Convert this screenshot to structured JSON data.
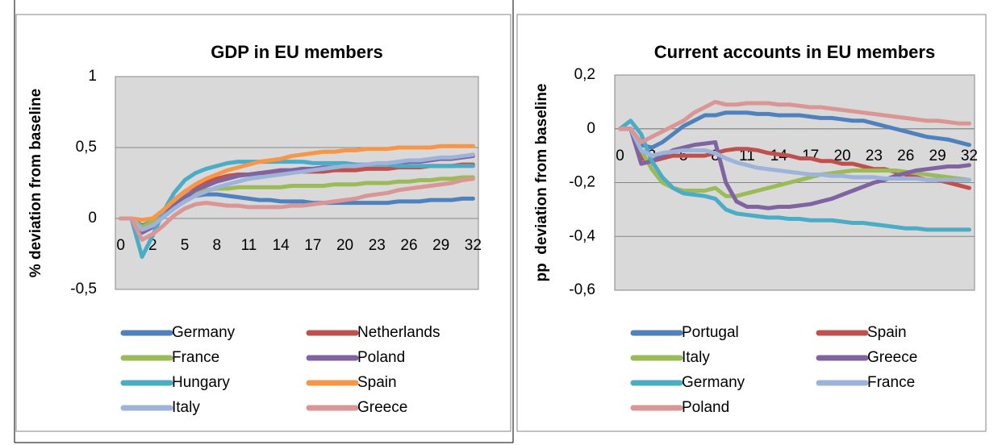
{
  "chart_data": [
    {
      "type": "line",
      "title": "GDP in EU members",
      "y_label": "% deviation from baseline",
      "categories": [
        "0",
        null,
        null,
        "2",
        null,
        null,
        "5",
        null,
        null,
        "8",
        null,
        null,
        "11",
        null,
        null,
        "14",
        null,
        null,
        "17",
        null,
        null,
        "20",
        null,
        null,
        "23",
        null,
        null,
        "26",
        null,
        null,
        "29",
        null,
        null,
        "32"
      ],
      "ylim": [
        -0.5,
        1
      ],
      "yticks": [
        {
          "value": -0.5,
          "label": "-0,5"
        },
        0,
        {
          "value": 0.5,
          "label": "0,5"
        },
        1
      ],
      "grid": true,
      "legend": "bottom",
      "series": [
        {
          "name": "Germany",
          "color": "#4F81BD",
          "values": [
            0,
            0,
            -0.05,
            -0.02,
            0.05,
            0.1,
            0.14,
            0.16,
            0.17,
            0.17,
            0.16,
            0.15,
            0.14,
            0.13,
            0.13,
            0.12,
            0.12,
            0.12,
            0.11,
            0.11,
            0.11,
            0.11,
            0.11,
            0.11,
            0.11,
            0.11,
            0.12,
            0.12,
            0.12,
            0.13,
            0.13,
            0.13,
            0.14,
            0.14
          ]
        },
        {
          "name": "Netherlands",
          "color": "#C0504D",
          "values": [
            0,
            0,
            -0.06,
            -0.02,
            0.06,
            0.13,
            0.19,
            0.23,
            0.26,
            0.28,
            0.3,
            0.31,
            0.31,
            0.32,
            0.32,
            0.32,
            0.33,
            0.33,
            0.33,
            0.33,
            0.34,
            0.34,
            0.34,
            0.35,
            0.35,
            0.35,
            0.36,
            0.36,
            0.36,
            0.37,
            0.37,
            0.37,
            0.38,
            0.38
          ]
        },
        {
          "name": "France",
          "color": "#9BBB59",
          "values": [
            0,
            0,
            -0.06,
            -0.02,
            0.05,
            0.11,
            0.16,
            0.19,
            0.2,
            0.21,
            0.21,
            0.22,
            0.22,
            0.22,
            0.22,
            0.22,
            0.23,
            0.23,
            0.23,
            0.23,
            0.24,
            0.24,
            0.24,
            0.25,
            0.25,
            0.25,
            0.26,
            0.26,
            0.27,
            0.27,
            0.28,
            0.28,
            0.29,
            0.29
          ]
        },
        {
          "name": "Poland",
          "color": "#8064A2",
          "values": [
            0,
            0,
            -0.1,
            -0.06,
            0.02,
            0.09,
            0.15,
            0.2,
            0.23,
            0.26,
            0.28,
            0.3,
            0.31,
            0.32,
            0.33,
            0.34,
            0.34,
            0.35,
            0.35,
            0.36,
            0.36,
            0.37,
            0.37,
            0.38,
            0.38,
            0.39,
            0.39,
            0.4,
            0.4,
            0.41,
            0.42,
            0.42,
            0.43,
            0.44
          ]
        },
        {
          "name": "Hungary",
          "color": "#4BACC6",
          "values": [
            0,
            0,
            -0.27,
            -0.12,
            0.05,
            0.18,
            0.27,
            0.32,
            0.35,
            0.37,
            0.39,
            0.4,
            0.4,
            0.4,
            0.4,
            0.4,
            0.4,
            0.4,
            0.39,
            0.39,
            0.39,
            0.39,
            0.38,
            0.38,
            0.38,
            0.38,
            0.37,
            0.37,
            0.37,
            0.37,
            0.37,
            0.37,
            0.37,
            0.37
          ]
        },
        {
          "name": "Spain",
          "color": "#F79646",
          "values": [
            0,
            0,
            -0.01,
            0,
            0.06,
            0.13,
            0.19,
            0.24,
            0.28,
            0.31,
            0.34,
            0.36,
            0.38,
            0.4,
            0.41,
            0.42,
            0.44,
            0.45,
            0.46,
            0.47,
            0.47,
            0.48,
            0.48,
            0.49,
            0.49,
            0.49,
            0.5,
            0.5,
            0.5,
            0.5,
            0.51,
            0.51,
            0.51,
            0.51
          ]
        },
        {
          "name": "Italy",
          "color": "#9DB3D9",
          "values": [
            0,
            0,
            -0.08,
            -0.05,
            0.01,
            0.07,
            0.12,
            0.16,
            0.19,
            0.22,
            0.24,
            0.26,
            0.28,
            0.29,
            0.3,
            0.31,
            0.32,
            0.33,
            0.34,
            0.35,
            0.36,
            0.37,
            0.37,
            0.38,
            0.39,
            0.39,
            0.4,
            0.41,
            0.41,
            0.42,
            0.43,
            0.43,
            0.44,
            0.45
          ]
        },
        {
          "name": "Greece",
          "color": "#D99694",
          "values": [
            0,
            0,
            -0.15,
            -0.11,
            -0.05,
            0.02,
            0.07,
            0.1,
            0.11,
            0.1,
            0.09,
            0.09,
            0.08,
            0.08,
            0.08,
            0.08,
            0.09,
            0.09,
            0.1,
            0.11,
            0.12,
            0.13,
            0.14,
            0.16,
            0.17,
            0.18,
            0.2,
            0.21,
            0.22,
            0.23,
            0.24,
            0.25,
            0.27,
            0.28
          ]
        }
      ]
    },
    {
      "type": "line",
      "title": "Current accounts in EU members",
      "y_label": "pp  deviation from baseline",
      "categories": [
        "0",
        null,
        null,
        "2",
        null,
        null,
        "5",
        null,
        null,
        "8",
        null,
        null,
        "11",
        null,
        null,
        "14",
        null,
        null,
        "17",
        null,
        null,
        "20",
        null,
        null,
        "23",
        null,
        null,
        "26",
        null,
        null,
        "29",
        null,
        null,
        "32"
      ],
      "ylim": [
        -0.6,
        0.2
      ],
      "yticks": [
        {
          "value": -0.6,
          "label": "-0,6"
        },
        {
          "value": -0.4,
          "label": "-0,4"
        },
        {
          "value": -0.2,
          "label": "-0,2"
        },
        0,
        {
          "value": 0.2,
          "label": "0,2"
        }
      ],
      "grid": true,
      "legend": "bottom",
      "series": [
        {
          "name": "Portugal",
          "color": "#4F81BD",
          "values": [
            0,
            0,
            -0.06,
            -0.07,
            -0.05,
            -0.02,
            0.01,
            0.03,
            0.05,
            0.05,
            0.06,
            0.06,
            0.06,
            0.055,
            0.055,
            0.05,
            0.05,
            0.05,
            0.045,
            0.04,
            0.04,
            0.035,
            0.03,
            0.03,
            0.02,
            0.01,
            0,
            -0.01,
            -0.02,
            -0.03,
            -0.035,
            -0.04,
            -0.05,
            -0.06
          ]
        },
        {
          "name": "Spain",
          "color": "#C0504D",
          "values": [
            0,
            0,
            -0.11,
            -0.12,
            -0.11,
            -0.1,
            -0.1,
            -0.1,
            -0.1,
            -0.09,
            -0.08,
            -0.075,
            -0.075,
            -0.08,
            -0.09,
            -0.095,
            -0.1,
            -0.11,
            -0.11,
            -0.12,
            -0.12,
            -0.13,
            -0.13,
            -0.14,
            -0.15,
            -0.15,
            -0.16,
            -0.17,
            -0.18,
            -0.19,
            -0.19,
            -0.2,
            -0.21,
            -0.22
          ]
        },
        {
          "name": "Italy",
          "color": "#9BBB59",
          "values": [
            0,
            0,
            -0.08,
            -0.15,
            -0.2,
            -0.22,
            -0.23,
            -0.23,
            -0.23,
            -0.22,
            -0.25,
            -0.25,
            -0.24,
            -0.23,
            -0.22,
            -0.21,
            -0.2,
            -0.19,
            -0.18,
            -0.17,
            -0.165,
            -0.16,
            -0.155,
            -0.155,
            -0.155,
            -0.155,
            -0.155,
            -0.16,
            -0.165,
            -0.17,
            -0.175,
            -0.18,
            -0.185,
            -0.19
          ]
        },
        {
          "name": "Greece",
          "color": "#8064A2",
          "values": [
            0,
            0,
            -0.13,
            -0.12,
            -0.1,
            -0.08,
            -0.07,
            -0.06,
            -0.055,
            -0.05,
            -0.2,
            -0.27,
            -0.29,
            -0.29,
            -0.295,
            -0.29,
            -0.29,
            -0.285,
            -0.28,
            -0.27,
            -0.26,
            -0.245,
            -0.23,
            -0.215,
            -0.2,
            -0.19,
            -0.175,
            -0.165,
            -0.155,
            -0.15,
            -0.145,
            -0.14,
            -0.14,
            -0.135
          ]
        },
        {
          "name": "Germany",
          "color": "#4BACC6",
          "values": [
            0,
            0.03,
            -0.02,
            -0.12,
            -0.18,
            -0.22,
            -0.24,
            -0.245,
            -0.25,
            -0.26,
            -0.3,
            -0.315,
            -0.32,
            -0.325,
            -0.33,
            -0.33,
            -0.335,
            -0.335,
            -0.34,
            -0.34,
            -0.34,
            -0.345,
            -0.35,
            -0.35,
            -0.355,
            -0.36,
            -0.365,
            -0.37,
            -0.37,
            -0.375,
            -0.375,
            -0.375,
            -0.375,
            -0.375
          ]
        },
        {
          "name": "France",
          "color": "#9DB3D9",
          "values": [
            0,
            0,
            -0.08,
            -0.1,
            -0.09,
            -0.085,
            -0.08,
            -0.08,
            -0.08,
            -0.09,
            -0.11,
            -0.125,
            -0.135,
            -0.145,
            -0.15,
            -0.155,
            -0.16,
            -0.165,
            -0.17,
            -0.17,
            -0.175,
            -0.175,
            -0.18,
            -0.18,
            -0.18,
            -0.185,
            -0.185,
            -0.185,
            -0.185,
            -0.19,
            -0.19,
            -0.19,
            -0.19,
            -0.19
          ]
        },
        {
          "name": "Poland",
          "color": "#D99694",
          "values": [
            0,
            0,
            -0.05,
            -0.03,
            -0.01,
            0.01,
            0.03,
            0.06,
            0.08,
            0.1,
            0.09,
            0.09,
            0.095,
            0.095,
            0.095,
            0.09,
            0.09,
            0.085,
            0.08,
            0.08,
            0.075,
            0.07,
            0.065,
            0.06,
            0.055,
            0.05,
            0.045,
            0.04,
            0.035,
            0.03,
            0.03,
            0.025,
            0.02,
            0.02
          ]
        }
      ]
    }
  ]
}
